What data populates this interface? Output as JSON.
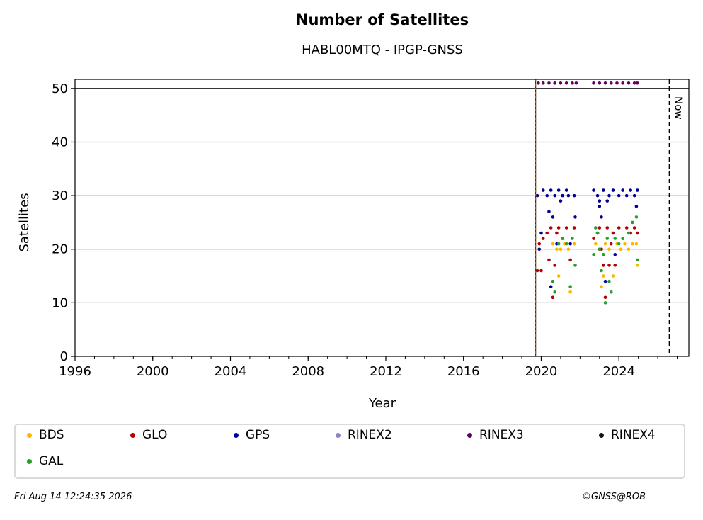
{
  "chart_data": {
    "type": "scatter",
    "title": "Number of Satellites",
    "subtitle": "HABL00MTQ - IPGP-GNSS",
    "xlabel": "Year",
    "ylabel": "Satellites",
    "xlim": [
      1996,
      2027.6
    ],
    "ylim": [
      0,
      51.7
    ],
    "x_ticks": [
      "1996",
      "2000",
      "2004",
      "2008",
      "2012",
      "2016",
      "2020",
      "2024"
    ],
    "y_ticks": [
      "0",
      "10",
      "20",
      "30",
      "40",
      "50"
    ],
    "grid": "horizontal",
    "max_line": 50,
    "event_line_x": 2019.7,
    "now_x": 2026.6,
    "now_label": "Now",
    "legend_position": "below",
    "series": [
      {
        "name": "BDS",
        "color": "#ffb400",
        "points": [
          [
            2020.6,
            21
          ],
          [
            2020.8,
            20
          ],
          [
            2020.9,
            15
          ],
          [
            2021.0,
            20
          ],
          [
            2021.2,
            21
          ],
          [
            2021.4,
            20
          ],
          [
            2021.5,
            12
          ],
          [
            2021.7,
            21
          ],
          [
            2022.8,
            21
          ],
          [
            2023.0,
            20
          ],
          [
            2023.1,
            13
          ],
          [
            2023.2,
            15
          ],
          [
            2023.3,
            21
          ],
          [
            2023.5,
            20
          ],
          [
            2023.7,
            15
          ],
          [
            2023.9,
            21
          ],
          [
            2024.1,
            20
          ],
          [
            2024.3,
            21
          ],
          [
            2024.5,
            20
          ],
          [
            2024.7,
            21
          ],
          [
            2024.9,
            21
          ],
          [
            2024.95,
            17
          ]
        ]
      },
      {
        "name": "GLO",
        "color": "#b40000",
        "points": [
          [
            2019.8,
            16
          ],
          [
            2020.0,
            16
          ],
          [
            2019.9,
            21
          ],
          [
            2020.1,
            22
          ],
          [
            2020.3,
            23
          ],
          [
            2020.4,
            18
          ],
          [
            2020.5,
            24
          ],
          [
            2020.6,
            11
          ],
          [
            2020.7,
            17
          ],
          [
            2020.8,
            23
          ],
          [
            2020.9,
            24
          ],
          [
            2021.1,
            22
          ],
          [
            2021.3,
            24
          ],
          [
            2021.5,
            18
          ],
          [
            2021.7,
            24
          ],
          [
            2022.7,
            22
          ],
          [
            2022.9,
            23
          ],
          [
            2023.0,
            24
          ],
          [
            2023.1,
            20
          ],
          [
            2023.2,
            17
          ],
          [
            2023.3,
            11
          ],
          [
            2023.4,
            24
          ],
          [
            2023.5,
            17
          ],
          [
            2023.6,
            21
          ],
          [
            2023.7,
            23
          ],
          [
            2023.8,
            17
          ],
          [
            2024.0,
            24
          ],
          [
            2024.2,
            22
          ],
          [
            2024.4,
            24
          ],
          [
            2024.6,
            23
          ],
          [
            2024.8,
            24
          ],
          [
            2024.95,
            23
          ]
        ]
      },
      {
        "name": "GPS",
        "color": "#000096",
        "points": [
          [
            2019.8,
            30
          ],
          [
            2019.9,
            20
          ],
          [
            2020.0,
            23
          ],
          [
            2020.1,
            31
          ],
          [
            2020.3,
            30
          ],
          [
            2020.4,
            27
          ],
          [
            2020.5,
            13
          ],
          [
            2020.5,
            31
          ],
          [
            2020.6,
            26
          ],
          [
            2020.7,
            30
          ],
          [
            2020.8,
            21
          ],
          [
            2020.9,
            31
          ],
          [
            2021.0,
            29
          ],
          [
            2021.1,
            30
          ],
          [
            2021.3,
            31
          ],
          [
            2021.4,
            30
          ],
          [
            2021.5,
            21
          ],
          [
            2021.7,
            30
          ],
          [
            2021.75,
            26
          ],
          [
            2022.7,
            31
          ],
          [
            2022.9,
            30
          ],
          [
            2023.0,
            29
          ],
          [
            2023.0,
            28
          ],
          [
            2023.1,
            26
          ],
          [
            2023.2,
            31
          ],
          [
            2023.3,
            14
          ],
          [
            2023.4,
            29
          ],
          [
            2023.5,
            30
          ],
          [
            2023.7,
            31
          ],
          [
            2023.8,
            19
          ],
          [
            2024.0,
            30
          ],
          [
            2024.2,
            31
          ],
          [
            2024.4,
            30
          ],
          [
            2024.6,
            31
          ],
          [
            2024.8,
            30
          ],
          [
            2024.9,
            28
          ],
          [
            2024.95,
            31
          ]
        ]
      },
      {
        "name": "RINEX2",
        "color": "#8c82c8",
        "points": []
      },
      {
        "name": "RINEX3",
        "color": "#640064",
        "points": [
          [
            2019.85,
            51
          ],
          [
            2020.1,
            51
          ],
          [
            2020.4,
            51
          ],
          [
            2020.7,
            51
          ],
          [
            2021.0,
            51
          ],
          [
            2021.3,
            51
          ],
          [
            2021.6,
            51
          ],
          [
            2021.8,
            51
          ],
          [
            2022.7,
            51
          ],
          [
            2023.0,
            51
          ],
          [
            2023.3,
            51
          ],
          [
            2023.6,
            51
          ],
          [
            2023.9,
            51
          ],
          [
            2024.2,
            51
          ],
          [
            2024.5,
            51
          ],
          [
            2024.8,
            51
          ],
          [
            2024.95,
            51
          ]
        ]
      },
      {
        "name": "RINEX4",
        "color": "#1e0a1e",
        "points": []
      },
      {
        "name": "GAL",
        "color": "#28a028",
        "points": [
          [
            2020.6,
            14
          ],
          [
            2020.7,
            12
          ],
          [
            2020.9,
            21
          ],
          [
            2021.1,
            22
          ],
          [
            2021.3,
            21
          ],
          [
            2021.5,
            13
          ],
          [
            2021.6,
            22
          ],
          [
            2021.75,
            17
          ],
          [
            2022.7,
            19
          ],
          [
            2022.8,
            24
          ],
          [
            2022.9,
            23
          ],
          [
            2023.0,
            20
          ],
          [
            2023.1,
            16
          ],
          [
            2023.2,
            19
          ],
          [
            2023.3,
            10
          ],
          [
            2023.4,
            22
          ],
          [
            2023.5,
            14
          ],
          [
            2023.6,
            12
          ],
          [
            2023.8,
            22
          ],
          [
            2024.0,
            21
          ],
          [
            2024.2,
            22
          ],
          [
            2024.5,
            23
          ],
          [
            2024.7,
            25
          ],
          [
            2024.9,
            26
          ],
          [
            2024.95,
            18
          ]
        ]
      }
    ]
  },
  "footer": {
    "timestamp": "Fri Aug 14 12:24:35 2026",
    "credit": "©GNSS@ROB"
  }
}
